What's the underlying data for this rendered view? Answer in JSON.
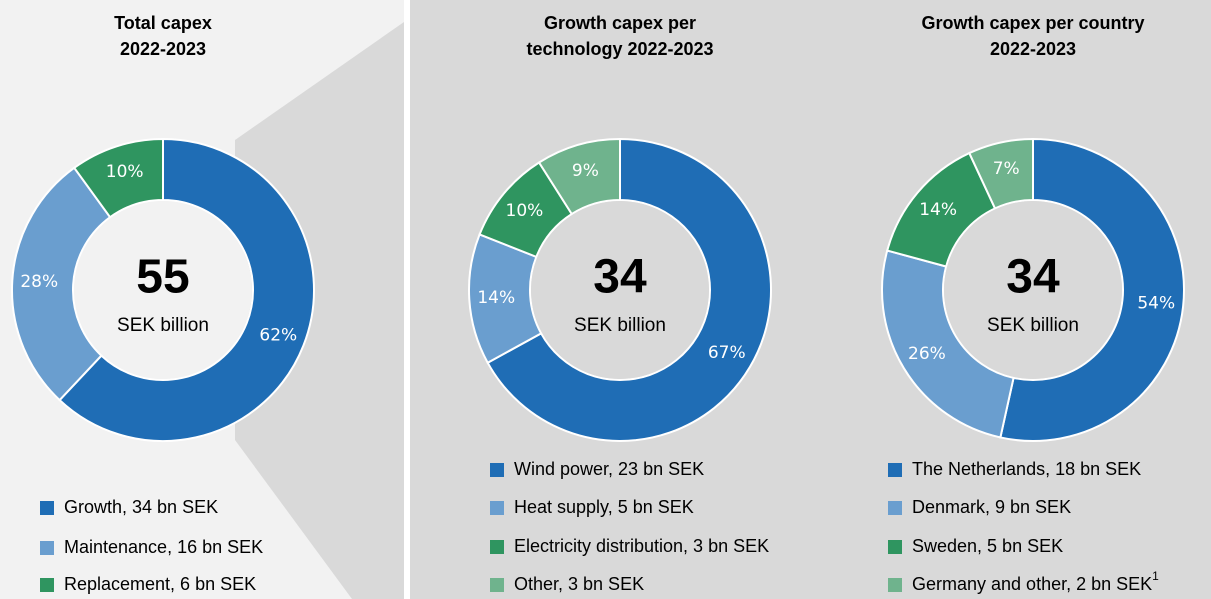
{
  "chart_data": [
    {
      "type": "donut",
      "title": [
        "Total capex",
        "2022-2023"
      ],
      "total": "55",
      "unit": "SEK billion",
      "categories": [
        "Growth, 34 bn SEK",
        "Maintenance, 16 bn SEK",
        "Replacement, 6 bn SEK"
      ],
      "values": [
        62,
        28,
        10
      ],
      "value_labels": [
        "62%",
        "28%",
        "10%"
      ],
      "colors": [
        "#1f6db5",
        "#6a9ecf",
        "#2f9560"
      ]
    },
    {
      "type": "donut",
      "title": [
        "Growth capex per",
        "technology 2022-2023"
      ],
      "total": "34",
      "unit": "SEK billion",
      "categories": [
        "Wind power, 23 bn SEK",
        "Heat supply, 5 bn SEK",
        "Electricity distribution, 3 bn SEK",
        "Other, 3 bn SEK"
      ],
      "values": [
        67,
        14,
        10,
        9
      ],
      "value_labels": [
        "67%",
        "14%",
        "10%",
        "9%"
      ],
      "colors": [
        "#1f6db5",
        "#6a9ecf",
        "#2f9560",
        "#6fb38d"
      ]
    },
    {
      "type": "donut",
      "title": [
        "Growth capex per country",
        "2022-2023"
      ],
      "total": "34",
      "unit": "SEK billion",
      "categories": [
        "The Netherlands, 18 bn SEK",
        "Denmark, 9 bn SEK",
        "Sweden, 5 bn SEK",
        "Germany and other, 2 bn SEK"
      ],
      "values": [
        54,
        26,
        14,
        7
      ],
      "value_labels": [
        "54%",
        "26%",
        "14%",
        "7%"
      ],
      "colors": [
        "#1f6db5",
        "#6a9ecf",
        "#2f9560",
        "#6fb38d"
      ],
      "footnote_mark": "1"
    }
  ]
}
